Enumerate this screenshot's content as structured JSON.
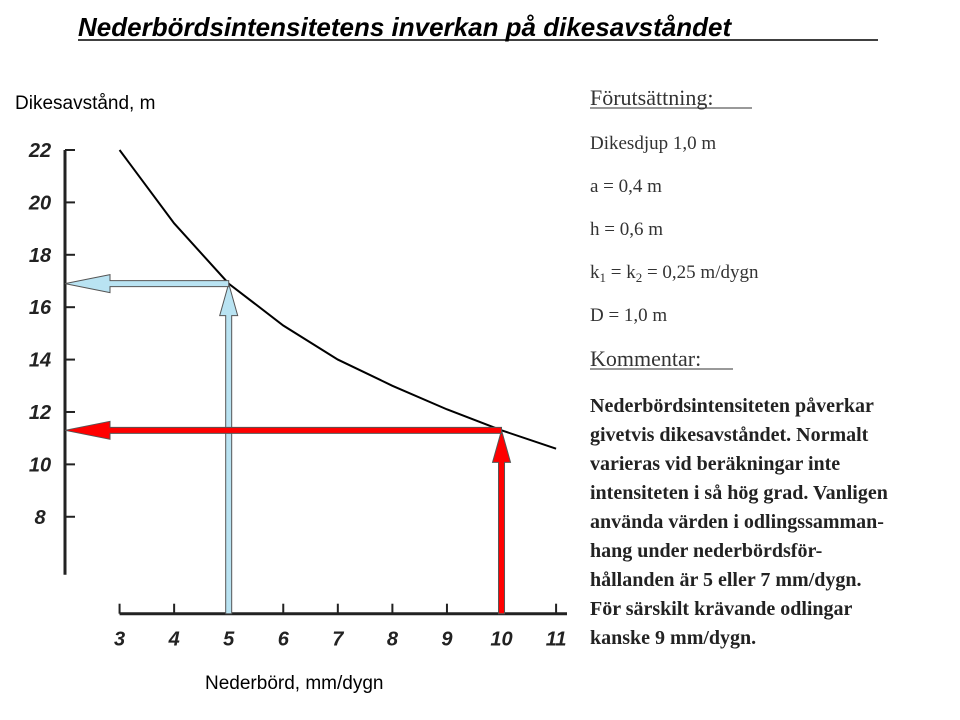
{
  "title": "Nederbördsintensitetens inverkan på dikesavståndet",
  "chart_data": {
    "type": "line",
    "y_label": "Dikesavstånd, m",
    "x_label": "Nederbörd, mm/dygn",
    "x": [
      3,
      4,
      5,
      6,
      7,
      8,
      9,
      10,
      11
    ],
    "series": [
      {
        "color": "#000000",
        "values": [
          22,
          19.2,
          16.9,
          15.3,
          14.0,
          13.0,
          12.1,
          11.3,
          10.6
        ]
      }
    ],
    "xlim": [
      2,
      11.2
    ],
    "ylim": [
      4.3,
      22
    ],
    "xticks": [
      3,
      4,
      5,
      6,
      7,
      8,
      9,
      10,
      11
    ],
    "yticks": [
      8,
      10,
      12,
      14,
      16,
      18,
      20,
      22
    ],
    "readings": [
      {
        "x": 5,
        "y": 16.9,
        "color": "#b9e3f2"
      },
      {
        "x": 10,
        "y": 11.3,
        "color": "#ff0000"
      }
    ]
  },
  "panel": {
    "heading1": "Förutsättning:",
    "params": [
      "Dikesdjup  1,0 m",
      "a = 0,4 m",
      "h = 0,6 m",
      [
        "k",
        "1",
        " = k",
        "2",
        " = 0,25 m/dygn"
      ],
      "D = 1,0 m"
    ],
    "heading2": "Kommentar:",
    "comment": [
      "Nederbördsintensiteten påverkar",
      "givetvis dikesavståndet. Normalt",
      "varieras vid beräkningar inte",
      "intensiteten i så hög grad. Vanligen",
      "använda värden i odlingssamman-",
      "hang under nederbördsför-",
      "hållanden är 5 eller  7 mm/dygn.",
      "För särskilt krävande odlingar",
      "kanske 9 mm/dygn."
    ]
  }
}
